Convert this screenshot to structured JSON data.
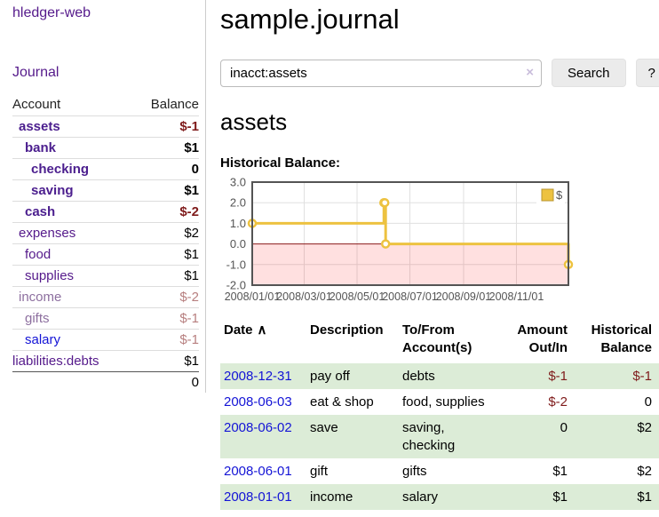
{
  "app": {
    "title": "hledger-web",
    "nav_journal": "Journal"
  },
  "colors": {
    "purple": "#551a8b",
    "purple_bold": "#4b1e8e",
    "purple_dim": "#8d6f9f",
    "blue": "#1414d6",
    "neg_strong": "#7f1b1b",
    "neg_dim": "#b77f7f",
    "row_green": "#dcecd7",
    "chart": {
      "series": "#edc240",
      "marker_fill": "#ffffff",
      "grid": "#e0e0e0",
      "border": "#545454",
      "negative_region": "rgba(255,0,0,0.12)",
      "zero_line": "#8b1a1a",
      "label": "#545454",
      "legend_square_border": "#b89530"
    }
  },
  "sidebar": {
    "table_headers": {
      "account": "Account",
      "balance": "Balance"
    },
    "accounts": [
      {
        "name": "assets",
        "balance": "$-1",
        "depth": 1,
        "style": "strong",
        "balance_style": "neg-strong",
        "emphasis": true
      },
      {
        "name": "bank",
        "balance": "$1",
        "depth": 2,
        "style": "strong",
        "balance_style": "plain",
        "emphasis": true
      },
      {
        "name": "checking",
        "balance": "0",
        "depth": 3,
        "style": "strong",
        "balance_style": "plain",
        "emphasis": true
      },
      {
        "name": "saving",
        "balance": "$1",
        "depth": 3,
        "style": "strong",
        "balance_style": "plain",
        "emphasis": true
      },
      {
        "name": "cash",
        "balance": "$-2",
        "depth": 2,
        "style": "strong",
        "balance_style": "neg-strong",
        "emphasis": true
      },
      {
        "name": "expenses",
        "balance": "$2",
        "depth": 1,
        "style": "normal",
        "balance_style": "plain",
        "emphasis": false
      },
      {
        "name": "food",
        "balance": "$1",
        "depth": 2,
        "style": "normal",
        "balance_style": "plain",
        "emphasis": false
      },
      {
        "name": "supplies",
        "balance": "$1",
        "depth": 2,
        "style": "normal",
        "balance_style": "plain",
        "emphasis": false
      },
      {
        "name": "income",
        "balance": "$-2",
        "depth": 1,
        "style": "dim",
        "balance_style": "neg-dim",
        "emphasis": false
      },
      {
        "name": "gifts",
        "balance": "$-1",
        "depth": 2,
        "style": "dim",
        "balance_style": "neg-dim",
        "emphasis": false
      },
      {
        "name": "salary",
        "balance": "$-1",
        "depth": 2,
        "style": "blue",
        "balance_style": "neg-dim",
        "emphasis": false
      },
      {
        "name": "liabilities:debts",
        "balance": "$1",
        "depth": 0,
        "style": "normal",
        "balance_style": "plain",
        "emphasis": false
      }
    ],
    "total": "0"
  },
  "main": {
    "title": "sample.journal",
    "search": {
      "value": "inacct:assets",
      "clear_icon": "×",
      "button": "Search",
      "help_button": "?"
    },
    "account_heading": "assets",
    "chart_heading": "Historical Balance:",
    "register": {
      "headers": {
        "date": "Date",
        "sort_indicator": "∧",
        "description": "Description",
        "accounts": "To/From Account(s)",
        "amount": "Amount Out/In",
        "balance": "Historical Balance"
      },
      "rows": [
        {
          "date": "2008-12-31",
          "description": "pay off",
          "accounts": "debts",
          "amount": "$-1",
          "amount_negative": true,
          "balance": "$-1",
          "balance_negative": true,
          "shaded": true
        },
        {
          "date": "2008-06-03",
          "description": "eat & shop",
          "accounts": "food, supplies",
          "amount": "$-2",
          "amount_negative": true,
          "balance": "0",
          "balance_negative": false,
          "shaded": false
        },
        {
          "date": "2008-06-02",
          "description": "save",
          "accounts": "saving, checking",
          "amount": "0",
          "amount_negative": false,
          "balance": "$2",
          "balance_negative": false,
          "shaded": true
        },
        {
          "date": "2008-06-01",
          "description": "gift",
          "accounts": "gifts",
          "amount": "$1",
          "amount_negative": false,
          "balance": "$2",
          "balance_negative": false,
          "shaded": false
        },
        {
          "date": "2008-01-01",
          "description": "income",
          "accounts": "salary",
          "amount": "$1",
          "amount_negative": false,
          "balance": "$1",
          "balance_negative": false,
          "shaded": true
        }
      ]
    }
  },
  "chart_data": {
    "type": "line",
    "step": true,
    "title": "Historical Balance",
    "series": [
      {
        "name": "$",
        "color": "#edc240",
        "points": [
          [
            "2008-01-01",
            1
          ],
          [
            "2008-06-01",
            2
          ],
          [
            "2008-06-02",
            2
          ],
          [
            "2008-06-03",
            0
          ],
          [
            "2008-12-31",
            -1
          ]
        ]
      }
    ],
    "xlim": [
      "2008-01-01",
      "2008-12-31"
    ],
    "ylim": [
      -2,
      3
    ],
    "x_ticks": [
      "2008/01/01",
      "2008/03/01",
      "2008/05/01",
      "2008/07/01",
      "2008/09/01",
      "2008/11/01"
    ],
    "y_ticks": [
      3.0,
      2.0,
      1.0,
      0.0,
      -1.0,
      -2.0
    ],
    "legend_position": "top-right",
    "grid": true,
    "negative_region_shaded": true
  }
}
